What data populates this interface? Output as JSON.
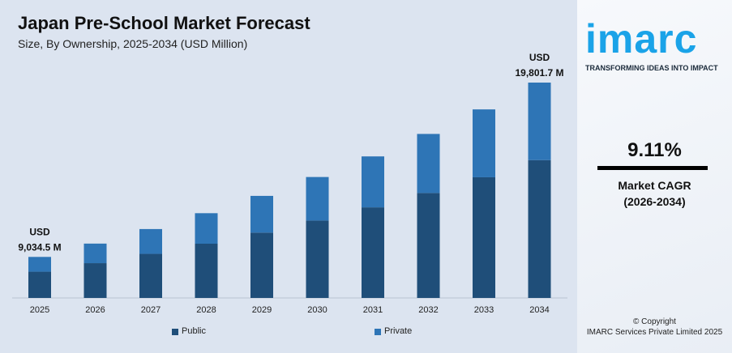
{
  "chart_data": {
    "type": "bar",
    "stacked": true,
    "title": "Japan Pre-School Market Forecast",
    "subtitle": "Size, By Ownership, 2025-2034 (USD Million)",
    "categories": [
      "2025",
      "2026",
      "2027",
      "2028",
      "2029",
      "2030",
      "2031",
      "2032",
      "2033",
      "2034"
    ],
    "series": [
      {
        "name": "Public",
        "color": "#1f4e79",
        "values": [
          5782,
          6308,
          6883,
          7510,
          8195,
          8941,
          9755,
          10643,
          11613,
          12673
        ]
      },
      {
        "name": "Private",
        "color": "#2e75b6",
        "values": [
          3252.5,
          3549,
          3872,
          4225,
          4609,
          5029,
          5487,
          5987,
          6532,
          7128.7
        ]
      }
    ],
    "totals": [
      9034.5,
      9857,
      10755,
      11735,
      12804,
      13970,
      15242,
      16630,
      18145,
      19801.7
    ],
    "annotations": [
      {
        "category": "2025",
        "line1": "USD",
        "line2": "9,034.5 M"
      },
      {
        "category": "2034",
        "line1": "USD",
        "line2": "19,801.7 M"
      }
    ],
    "legend": "bottom",
    "grid": false
  },
  "side": {
    "logo": "imarc",
    "tagline": "TRANSFORMING IDEAS INTO IMPACT",
    "cagr": "9.11%",
    "cagr_label": "Market CAGR",
    "cagr_period": "(2026-2034)",
    "copyright": "© Copyright",
    "company": "IMARC Services Private Limited 2025"
  }
}
